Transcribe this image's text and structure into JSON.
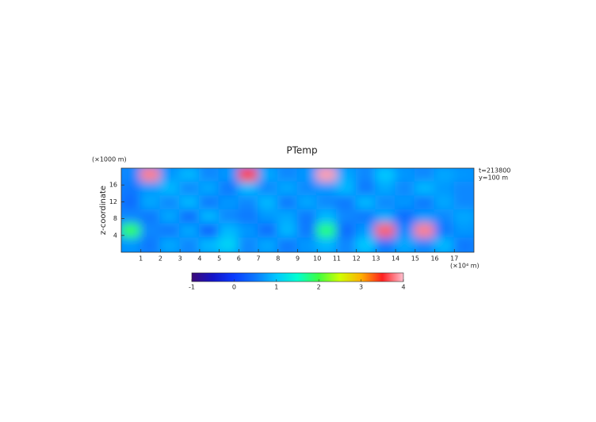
{
  "chart_data": {
    "type": "heatmap",
    "title": "PTemp",
    "y_unit_label": "(×1000 m)",
    "x_unit_label": "(×10⁴ m)",
    "ylabel": "z-coordinate",
    "annotations": [
      "t=213800",
      "y=100 m"
    ],
    "xlim": [
      0,
      18
    ],
    "ylim": [
      0,
      20
    ],
    "xticks": [
      1,
      2,
      3,
      4,
      5,
      6,
      7,
      8,
      9,
      10,
      11,
      12,
      13,
      14,
      15,
      16,
      17
    ],
    "yticks": [
      4,
      8,
      12,
      16
    ],
    "x": [
      0.5,
      1.5,
      2.5,
      3.5,
      4.5,
      5.5,
      6.5,
      7.5,
      8.5,
      9.5,
      10.5,
      11.5,
      12.5,
      13.5,
      14.5,
      15.5,
      16.5,
      17.5
    ],
    "y": [
      18.33,
      15,
      11.67,
      8.33,
      5,
      1.67
    ],
    "z": [
      [
        0.6,
        3.8,
        0.7,
        0.9,
        0.6,
        0.7,
        3.6,
        0.8,
        0.6,
        0.7,
        3.9,
        0.8,
        0.6,
        1.0,
        0.7,
        0.6,
        0.8,
        0.7
      ],
      [
        0.5,
        0.7,
        0.9,
        0.6,
        0.8,
        0.5,
        0.9,
        0.6,
        0.8,
        0.6,
        0.7,
        0.9,
        0.5,
        0.8,
        0.6,
        0.9,
        0.7,
        0.6
      ],
      [
        0.4,
        0.8,
        0.6,
        0.9,
        0.5,
        0.7,
        0.6,
        0.9,
        0.5,
        0.8,
        0.6,
        0.5,
        0.9,
        0.6,
        0.7,
        0.5,
        0.8,
        0.6
      ],
      [
        0.6,
        0.5,
        0.8,
        0.4,
        0.9,
        0.6,
        0.5,
        0.7,
        0.8,
        0.5,
        0.9,
        0.6,
        0.5,
        0.8,
        0.4,
        0.7,
        0.6,
        0.8
      ],
      [
        1.9,
        0.6,
        0.5,
        0.8,
        0.3,
        0.9,
        0.7,
        0.4,
        0.9,
        0.5,
        1.8,
        0.4,
        0.7,
        3.7,
        0.6,
        3.8,
        0.5,
        0.7
      ],
      [
        0.7,
        0.5,
        0.8,
        0.6,
        0.9,
        1.1,
        0.6,
        0.8,
        0.5,
        0.7,
        0.9,
        0.6,
        1.0,
        0.5,
        0.8,
        0.6,
        0.9,
        0.5
      ]
    ],
    "clim": [
      -1,
      4
    ],
    "cticks": [
      -1,
      0,
      1,
      2,
      3,
      4
    ],
    "colorscale": [
      "#3c0a78",
      "#1414c8",
      "#0a3cff",
      "#0a78ff",
      "#00c8ff",
      "#00ffd0",
      "#40ff40",
      "#d0ff00",
      "#ffb000",
      "#ff2020",
      "#ffc0d0"
    ]
  }
}
